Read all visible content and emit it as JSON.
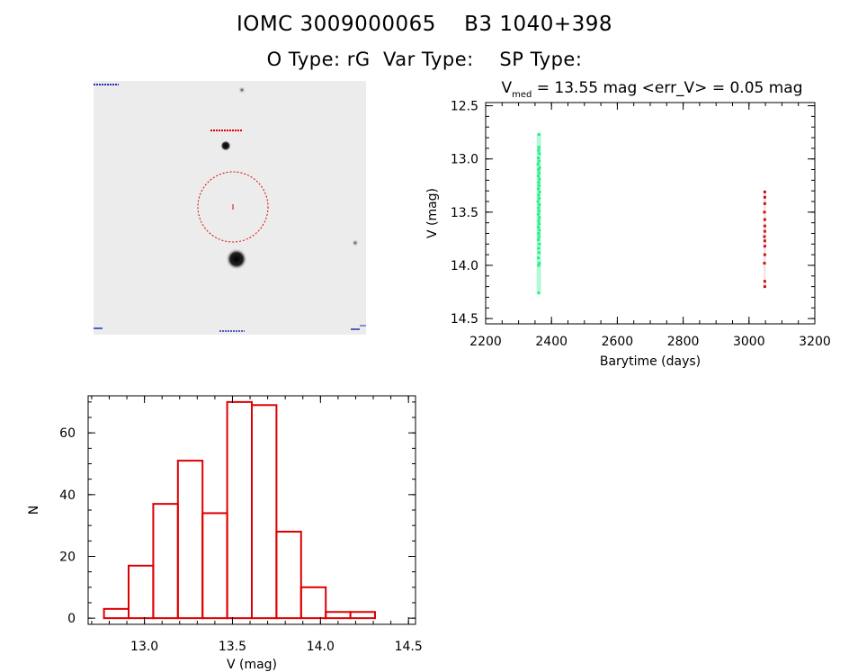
{
  "header": {
    "line1": "IOMC 3009000065    B3 1040+398",
    "line2": "O Type: rG  Var Type:    SP Type:"
  },
  "finding_chart": {
    "type": "image",
    "description_colors": {
      "circle": "#dd0000",
      "label": "#dd0000",
      "corner_labels": "#2233aa"
    }
  },
  "chart_data": [
    {
      "type": "scatter",
      "title_main": "V",
      "title_sub": "med",
      "title_rest": " = 13.55 mag <err_V> = 0.05 mag",
      "xlabel": "Barytime (days)",
      "ylabel": "V (mag)",
      "xlim": [
        2200,
        3200
      ],
      "ylim": [
        14.55,
        12.47
      ],
      "xticks": [
        2200,
        2400,
        2600,
        2800,
        3000,
        3200
      ],
      "yticks": [
        12.5,
        13.0,
        13.5,
        14.0,
        14.5
      ],
      "ytick_labels": [
        "12.5",
        "13.0",
        "13.5",
        "14.0",
        "14.5"
      ],
      "series": [
        {
          "color": "#22ee88",
          "x_range": [
            2355,
            2368
          ],
          "y_range": [
            12.76,
            14.26
          ],
          "points": [
            [
              2362,
              12.77
            ],
            [
              2362,
              12.89
            ],
            [
              2361,
              12.92
            ],
            [
              2363,
              12.95
            ],
            [
              2360,
              12.99
            ],
            [
              2362,
              13.02
            ],
            [
              2359,
              13.05
            ],
            [
              2364,
              13.08
            ],
            [
              2361,
              13.1
            ],
            [
              2362,
              13.13
            ],
            [
              2360,
              13.16
            ],
            [
              2363,
              13.19
            ],
            [
              2361,
              13.22
            ],
            [
              2362,
              13.25
            ],
            [
              2360,
              13.28
            ],
            [
              2364,
              13.31
            ],
            [
              2361,
              13.34
            ],
            [
              2362,
              13.37
            ],
            [
              2359,
              13.4
            ],
            [
              2363,
              13.43
            ],
            [
              2361,
              13.46
            ],
            [
              2362,
              13.49
            ],
            [
              2360,
              13.52
            ],
            [
              2363,
              13.55
            ],
            [
              2361,
              13.58
            ],
            [
              2362,
              13.61
            ],
            [
              2360,
              13.64
            ],
            [
              2363,
              13.67
            ],
            [
              2361,
              13.7
            ],
            [
              2362,
              13.73
            ],
            [
              2360,
              13.76
            ],
            [
              2363,
              13.8
            ],
            [
              2361,
              13.84
            ],
            [
              2362,
              13.88
            ],
            [
              2360,
              13.93
            ],
            [
              2363,
              13.98
            ],
            [
              2361,
              14.0
            ],
            [
              2361,
              14.26
            ]
          ]
        },
        {
          "color": "#cc1111",
          "x_range": [
            3045,
            3050
          ],
          "y_range": [
            13.3,
            14.2
          ],
          "points": [
            [
              3048,
              13.31
            ],
            [
              3048,
              13.36
            ],
            [
              3048,
              13.42
            ],
            [
              3047,
              13.5
            ],
            [
              3048,
              13.57
            ],
            [
              3048,
              13.63
            ],
            [
              3048,
              13.68
            ],
            [
              3047,
              13.73
            ],
            [
              3048,
              13.77
            ],
            [
              3048,
              13.82
            ],
            [
              3048,
              13.9
            ],
            [
              3047,
              13.98
            ],
            [
              3048,
              14.15
            ],
            [
              3048,
              14.2
            ]
          ]
        }
      ]
    },
    {
      "type": "bar",
      "xlabel": "V (mag)",
      "ylabel": "N",
      "xlim": [
        12.68,
        14.54
      ],
      "ylim": [
        -2,
        72
      ],
      "xticks": [
        13.0,
        13.5,
        14.0,
        14.5
      ],
      "xtick_labels": [
        "13.0",
        "13.5",
        "14.0",
        "14.5"
      ],
      "yticks": [
        0,
        20,
        40,
        60
      ],
      "bin_edges": [
        12.77,
        12.91,
        13.05,
        13.19,
        13.33,
        13.47,
        13.61,
        13.75,
        13.89,
        14.03,
        14.17,
        14.31
      ],
      "values": [
        3,
        17,
        37,
        51,
        34,
        70,
        69,
        28,
        10,
        2,
        2
      ],
      "bar_color": "#dd0000"
    }
  ]
}
